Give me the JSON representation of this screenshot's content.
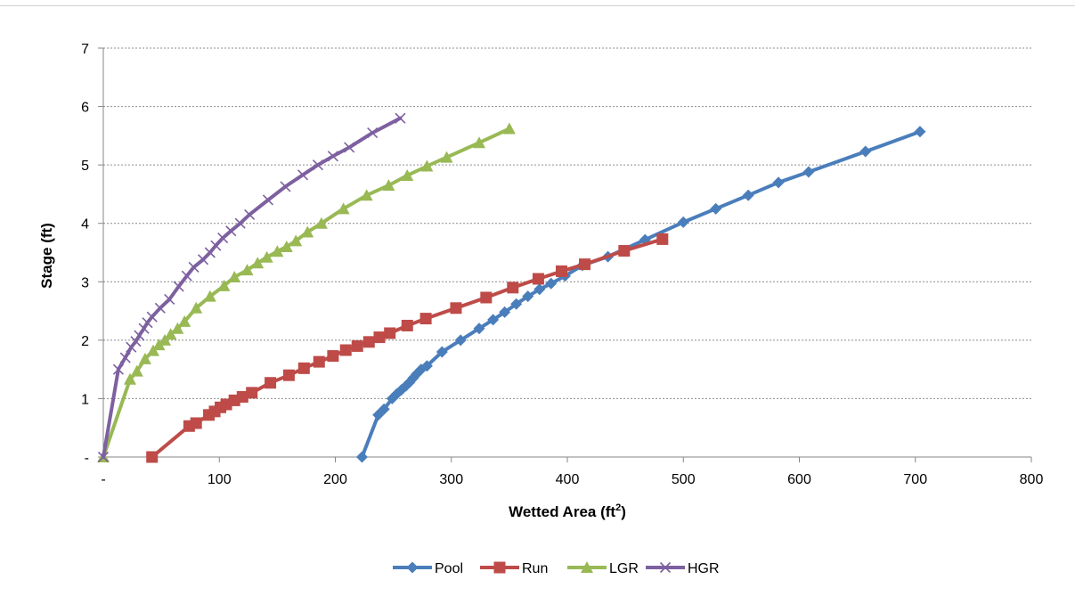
{
  "chart_data": {
    "type": "line",
    "xlabel": "Wetted Area (ft",
    "xlabel_sup": "2",
    "xlabel_end": ")",
    "ylabel": "Stage (ft)",
    "xlim": [
      0,
      800
    ],
    "ylim": [
      0,
      7
    ],
    "x_ticks": [
      0,
      100,
      200,
      300,
      400,
      500,
      600,
      700,
      800
    ],
    "x_tick_labels": [
      "-",
      "100",
      "200",
      "300",
      "400",
      "500",
      "600",
      "700",
      "800"
    ],
    "y_ticks": [
      0,
      1,
      2,
      3,
      4,
      5,
      6,
      7
    ],
    "y_tick_labels": [
      "-",
      "1",
      "2",
      "3",
      "4",
      "5",
      "6",
      "7"
    ],
    "grid": "horizontal",
    "legend_position": "bottom",
    "series": [
      {
        "name": "Pool",
        "color": "#4a7ebb",
        "marker": "diamond",
        "points": [
          [
            223,
            0
          ],
          [
            237,
            0.72
          ],
          [
            242,
            0.82
          ],
          [
            249,
            1.0
          ],
          [
            253,
            1.08
          ],
          [
            257,
            1.15
          ],
          [
            261,
            1.22
          ],
          [
            264,
            1.28
          ],
          [
            267,
            1.35
          ],
          [
            270,
            1.42
          ],
          [
            274,
            1.5
          ],
          [
            279,
            1.56
          ],
          [
            292,
            1.8
          ],
          [
            308,
            2.0
          ],
          [
            324,
            2.2
          ],
          [
            336,
            2.35
          ],
          [
            346,
            2.48
          ],
          [
            356,
            2.62
          ],
          [
            366,
            2.75
          ],
          [
            376,
            2.87
          ],
          [
            386,
            2.97
          ],
          [
            398,
            3.1
          ],
          [
            413,
            3.28
          ],
          [
            435,
            3.43
          ],
          [
            467,
            3.72
          ],
          [
            500,
            4.02
          ],
          [
            528,
            4.25
          ],
          [
            556,
            4.48
          ],
          [
            582,
            4.7
          ],
          [
            608,
            4.88
          ],
          [
            657,
            5.23
          ],
          [
            704,
            5.57
          ]
        ]
      },
      {
        "name": "Run",
        "color": "#be4b48",
        "marker": "square",
        "points": [
          [
            42,
            0
          ],
          [
            74,
            0.53
          ],
          [
            80,
            0.58
          ],
          [
            91,
            0.72
          ],
          [
            96,
            0.78
          ],
          [
            101,
            0.85
          ],
          [
            106,
            0.9
          ],
          [
            113,
            0.97
          ],
          [
            120,
            1.03
          ],
          [
            128,
            1.1
          ],
          [
            144,
            1.27
          ],
          [
            160,
            1.4
          ],
          [
            173,
            1.52
          ],
          [
            186,
            1.63
          ],
          [
            198,
            1.73
          ],
          [
            209,
            1.83
          ],
          [
            219,
            1.9
          ],
          [
            229,
            1.97
          ],
          [
            238,
            2.05
          ],
          [
            247,
            2.12
          ],
          [
            262,
            2.25
          ],
          [
            278,
            2.37
          ],
          [
            304,
            2.55
          ],
          [
            330,
            2.73
          ],
          [
            353,
            2.9
          ],
          [
            375,
            3.05
          ],
          [
            395,
            3.18
          ],
          [
            415,
            3.3
          ],
          [
            449,
            3.53
          ],
          [
            482,
            3.73
          ]
        ]
      },
      {
        "name": "LGR",
        "color": "#98b954",
        "marker": "triangle",
        "points": [
          [
            0,
            0
          ],
          [
            23,
            1.33
          ],
          [
            29,
            1.47
          ],
          [
            36,
            1.68
          ],
          [
            43,
            1.82
          ],
          [
            48,
            1.92
          ],
          [
            53,
            2.0
          ],
          [
            58,
            2.1
          ],
          [
            64,
            2.2
          ],
          [
            70,
            2.32
          ],
          [
            80,
            2.55
          ],
          [
            92,
            2.75
          ],
          [
            104,
            2.93
          ],
          [
            113,
            3.08
          ],
          [
            124,
            3.2
          ],
          [
            133,
            3.32
          ],
          [
            141,
            3.42
          ],
          [
            150,
            3.52
          ],
          [
            158,
            3.6
          ],
          [
            166,
            3.7
          ],
          [
            176,
            3.85
          ],
          [
            188,
            4.0
          ],
          [
            207,
            4.25
          ],
          [
            227,
            4.48
          ],
          [
            246,
            4.65
          ],
          [
            262,
            4.82
          ],
          [
            279,
            4.98
          ],
          [
            296,
            5.13
          ],
          [
            324,
            5.38
          ],
          [
            350,
            5.62
          ]
        ]
      },
      {
        "name": "HGR",
        "color": "#7d60a0",
        "marker": "x",
        "points": [
          [
            0,
            0
          ],
          [
            13,
            1.5
          ],
          [
            19,
            1.7
          ],
          [
            24,
            1.88
          ],
          [
            28,
            1.98
          ],
          [
            31,
            2.08
          ],
          [
            35,
            2.2
          ],
          [
            38,
            2.3
          ],
          [
            42,
            2.4
          ],
          [
            49,
            2.55
          ],
          [
            57,
            2.7
          ],
          [
            65,
            2.92
          ],
          [
            72,
            3.1
          ],
          [
            78,
            3.25
          ],
          [
            86,
            3.38
          ],
          [
            92,
            3.5
          ],
          [
            97,
            3.62
          ],
          [
            103,
            3.75
          ],
          [
            110,
            3.87
          ],
          [
            118,
            4.0
          ],
          [
            126,
            4.15
          ],
          [
            142,
            4.4
          ],
          [
            157,
            4.63
          ],
          [
            172,
            4.83
          ],
          [
            185,
            5.0
          ],
          [
            198,
            5.15
          ],
          [
            212,
            5.3
          ],
          [
            232,
            5.55
          ],
          [
            256,
            5.8
          ]
        ]
      }
    ]
  }
}
